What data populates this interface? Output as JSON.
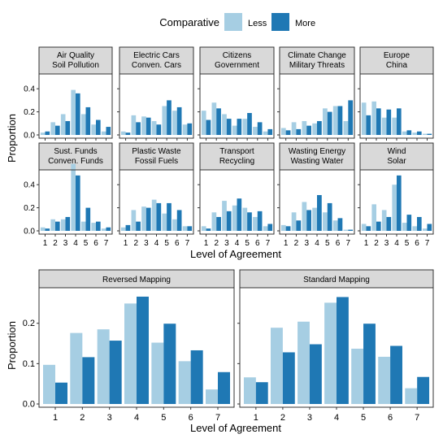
{
  "legend": {
    "title": "Comparative",
    "entries": [
      {
        "label": "Less",
        "color": "#a6cee3"
      },
      {
        "label": "More",
        "color": "#1f78b4"
      }
    ],
    "placement": "top-center"
  },
  "chart_data": [
    {
      "type": "bar",
      "layout": "facet-grid",
      "xlabel": "Level of Agreement",
      "ylabel": "Proportion",
      "x_categories": [
        "1",
        "2",
        "3",
        "4",
        "5",
        "6",
        "7"
      ],
      "ylim": [
        0,
        0.5
      ],
      "yticks": [
        0.0,
        0.2,
        0.4
      ],
      "ytick_labels": [
        "0.0",
        "0.2",
        "0.4"
      ],
      "series_names": [
        "Less",
        "More"
      ],
      "panels": [
        {
          "strip": [
            "Air Quality",
            "Soil Pollution"
          ],
          "less": [
            0.02,
            0.11,
            0.18,
            0.39,
            0.18,
            0.09,
            0.03
          ],
          "more": [
            0.03,
            0.08,
            0.12,
            0.36,
            0.24,
            0.13,
            0.07
          ]
        },
        {
          "strip": [
            "Electric Cars",
            "Conven. Cars"
          ],
          "less": [
            0.03,
            0.17,
            0.16,
            0.12,
            0.25,
            0.21,
            0.09
          ],
          "more": [
            0.02,
            0.11,
            0.15,
            0.09,
            0.3,
            0.24,
            0.1
          ]
        },
        {
          "strip": [
            "Citizens",
            "Government"
          ],
          "less": [
            0.21,
            0.28,
            0.18,
            0.08,
            0.14,
            0.07,
            0.03
          ],
          "more": [
            0.13,
            0.23,
            0.14,
            0.14,
            0.19,
            0.11,
            0.05
          ]
        },
        {
          "strip": [
            "Climate Change",
            "Military Threats"
          ],
          "less": [
            0.06,
            0.11,
            0.12,
            0.1,
            0.23,
            0.25,
            0.12
          ],
          "more": [
            0.04,
            0.05,
            0.08,
            0.12,
            0.2,
            0.25,
            0.3
          ]
        },
        {
          "strip": [
            "Europe",
            "China"
          ],
          "less": [
            0.28,
            0.29,
            0.15,
            0.15,
            0.03,
            0.02,
            0.01
          ],
          "more": [
            0.17,
            0.23,
            0.22,
            0.23,
            0.04,
            0.03,
            0.01
          ]
        },
        {
          "strip": [
            "Sust. Funds",
            "Conven. Funds"
          ],
          "less": [
            0.03,
            0.1,
            0.1,
            0.58,
            0.08,
            0.07,
            0.02
          ],
          "more": [
            0.02,
            0.08,
            0.12,
            0.48,
            0.2,
            0.08,
            0.03
          ]
        },
        {
          "strip": [
            "Plastic Waste",
            "Fossil Fuels"
          ],
          "less": [
            0.03,
            0.18,
            0.21,
            0.27,
            0.15,
            0.1,
            0.04
          ],
          "more": [
            0.05,
            0.08,
            0.2,
            0.24,
            0.24,
            0.18,
            0.04
          ]
        },
        {
          "strip": [
            "Transport",
            "Recycling"
          ],
          "less": [
            0.04,
            0.16,
            0.26,
            0.22,
            0.2,
            0.12,
            0.04
          ],
          "more": [
            0.02,
            0.12,
            0.17,
            0.28,
            0.16,
            0.17,
            0.06
          ]
        },
        {
          "strip": [
            "Wasting Energy",
            "Wasting Water"
          ],
          "less": [
            0.05,
            0.16,
            0.25,
            0.2,
            0.16,
            0.09,
            0.01
          ],
          "more": [
            0.04,
            0.09,
            0.18,
            0.31,
            0.24,
            0.11,
            0.01
          ]
        },
        {
          "strip": [
            "Wind",
            "Solar"
          ],
          "less": [
            0.06,
            0.23,
            0.18,
            0.4,
            0.07,
            0.04,
            0.02
          ],
          "more": [
            0.04,
            0.08,
            0.12,
            0.48,
            0.14,
            0.12,
            0.06
          ]
        }
      ]
    },
    {
      "type": "bar",
      "layout": "facet-row",
      "xlabel": "Level of Agreement",
      "ylabel": "Proportion",
      "x_categories": [
        "1",
        "2",
        "3",
        "4",
        "5",
        "6",
        "7"
      ],
      "ylim": [
        0,
        0.28
      ],
      "yticks": [
        0.0,
        0.1,
        0.2
      ],
      "ytick_labels": [
        "0.0",
        "0.1",
        "0.2"
      ],
      "series_names": [
        "Less",
        "More"
      ],
      "panels": [
        {
          "strip": [
            "Reversed Mapping"
          ],
          "less": [
            0.097,
            0.176,
            0.185,
            0.249,
            0.152,
            0.106,
            0.036
          ],
          "more": [
            0.053,
            0.116,
            0.157,
            0.266,
            0.199,
            0.133,
            0.079
          ]
        },
        {
          "strip": [
            "Standard Mapping"
          ],
          "less": [
            0.066,
            0.189,
            0.204,
            0.251,
            0.137,
            0.117,
            0.039
          ],
          "more": [
            0.054,
            0.128,
            0.148,
            0.265,
            0.199,
            0.144,
            0.067
          ]
        }
      ]
    }
  ]
}
